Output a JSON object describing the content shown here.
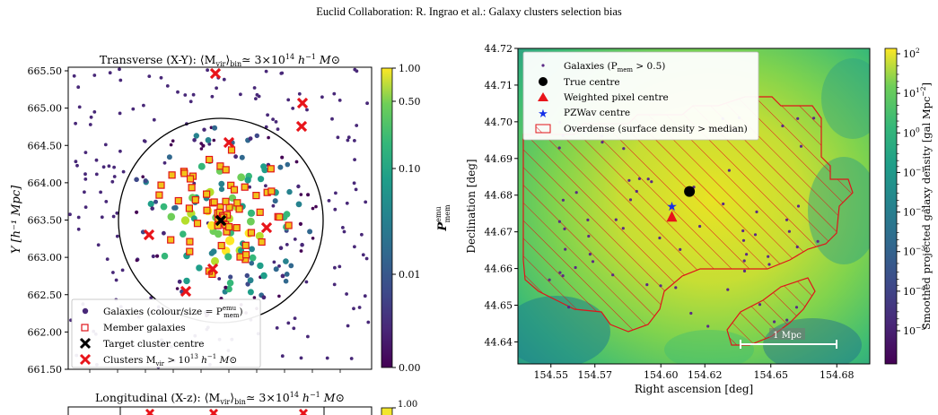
{
  "header": {
    "running_head": "Euclid Collaboration: R. Ingrao et al.: Galaxy clusters selection bias"
  },
  "left_panel": {
    "title": "Transverse (X-Y): ⟨M",
    "title_sub": "vir",
    "title_rest": "⟩",
    "title_bin": "bin",
    "title_tail": "≃ 3×10",
    "title_exp": "14",
    "title_units": " h",
    "title_units_exp": "−1",
    "title_msun": " M⊙",
    "ylabel": "Y [h⁻¹ Mpc]",
    "yticks": [
      "665.50",
      "665.00",
      "664.50",
      "664.00",
      "663.50",
      "663.00",
      "662.50",
      "662.00",
      "661.50"
    ],
    "ylim": [
      661.5,
      665.5
    ],
    "colorbar_label": "P",
    "colorbar_label_sup": "emu",
    "colorbar_label_sub": "mem",
    "colorbar_ticks": [
      "1.00",
      "0.50",
      "0.10",
      "0.01",
      "0.00"
    ],
    "legend": [
      {
        "label": "Galaxies (colour/size = P",
        "sup": "emu",
        "sub": "mem",
        "tail": ")"
      },
      {
        "label": "Member galaxies"
      },
      {
        "label": "Target cluster centre"
      },
      {
        "label": "Clusters M",
        "sub": "vir",
        "tail": " > 10",
        "sup2": "13",
        "tail2": " h",
        "sup3": "−1",
        "tail3": " M⊙"
      }
    ]
  },
  "bottom_panel": {
    "title": "Longitudinal (X-z): ⟨M",
    "title_sub": "vir",
    "title_bin": "bin",
    "title_tail": "≃ 3×10",
    "title_exp": "14",
    "title_units": " h",
    "title_units_exp": "−1",
    "title_msun": " M⊙",
    "colorbar_tick": "1.00"
  },
  "right_panel": {
    "xlabel": "Right ascension [deg]",
    "ylabel": "Declination [deg]",
    "xticks": [
      "154.55",
      "154.57",
      "154.60",
      "154.62",
      "154.65",
      "154.68"
    ],
    "yticks": [
      "44.72",
      "44.71",
      "44.70",
      "44.69",
      "44.68",
      "44.67",
      "44.66",
      "44.65",
      "44.64"
    ],
    "xlim": [
      154.535,
      154.695
    ],
    "ylim": [
      44.634,
      44.72
    ],
    "colorbar_label": "Smoothed projected galaxy density [gal Mpc",
    "colorbar_label_sup": "−2",
    "colorbar_label_tail": "]",
    "colorbar_ticks": [
      {
        "base": "10",
        "exp": "2"
      },
      {
        "base": "10",
        "exp": "1"
      },
      {
        "base": "10",
        "exp": "0"
      },
      {
        "base": "10",
        "exp": "−1"
      },
      {
        "base": "10",
        "exp": "−2"
      },
      {
        "base": "10",
        "exp": "−3"
      },
      {
        "base": "10",
        "exp": "−4"
      },
      {
        "base": "10",
        "exp": "−5"
      }
    ],
    "legend": [
      {
        "label": "Galaxies (P",
        "sub": "mem",
        "tail": " > 0.5)"
      },
      {
        "label": "True centre"
      },
      {
        "label": "Weighted pixel centre"
      },
      {
        "label": "PZWav centre"
      },
      {
        "label": "Overdense (surface density > median)"
      }
    ],
    "scalebar_label": "1 Mpc",
    "markers": {
      "true_centre": [
        154.613,
        44.681
      ],
      "weighted_pixel_centre": [
        154.605,
        44.674
      ],
      "pzwav_centre": [
        154.605,
        44.677
      ]
    }
  },
  "colors": {
    "viridis_low": "#440154",
    "viridis_mid": "#21918c",
    "viridis_high": "#fde725",
    "cluster_x": "#e8141a",
    "overdense_red": "#e0141a",
    "pzwav_blue": "#1530e8"
  }
}
